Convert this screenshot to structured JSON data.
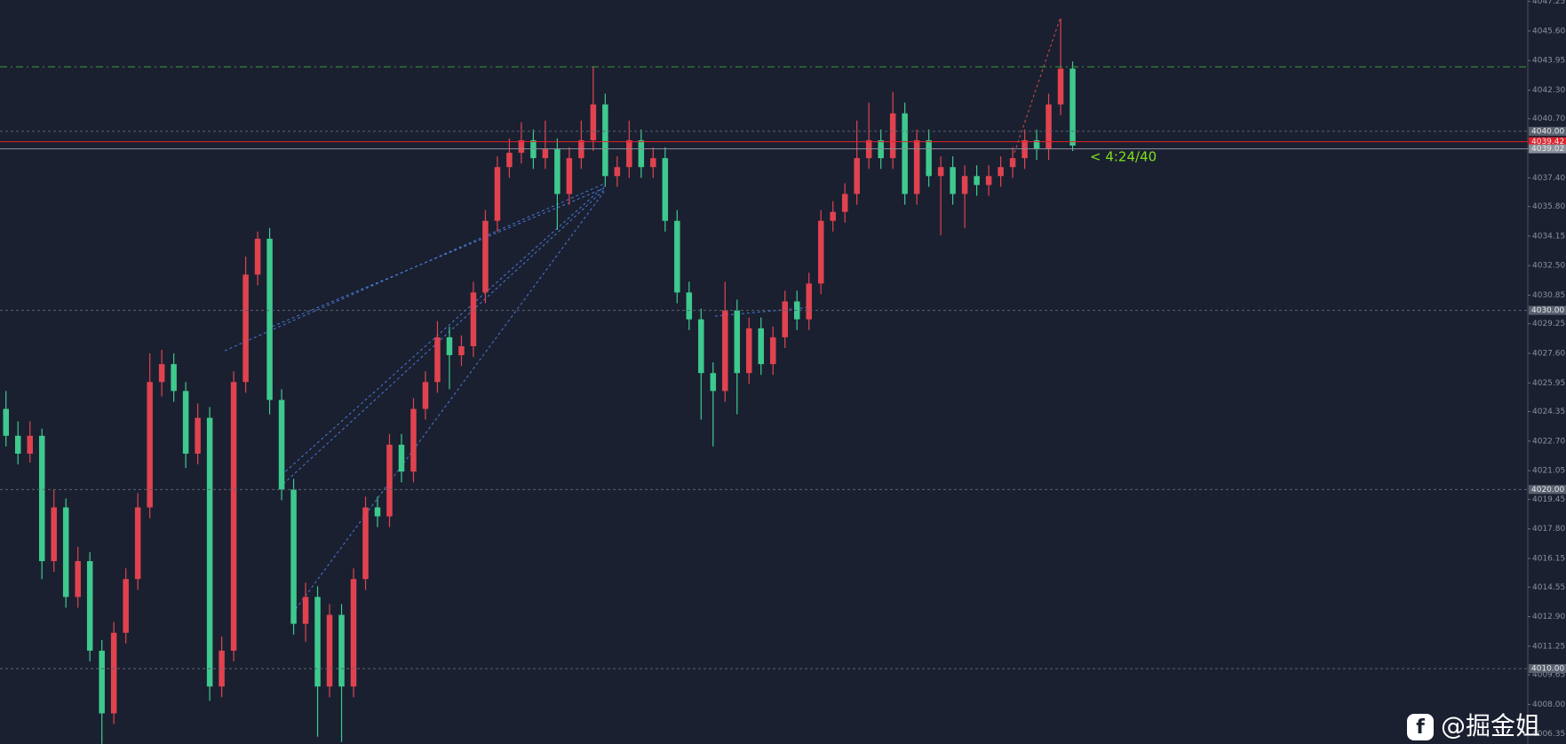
{
  "chart_data": {
    "type": "candlestick",
    "up_color": "#e0434f",
    "down_color": "#3ec98e",
    "background": "#1a2030",
    "ylim": [
      4005.79,
      4047.33
    ],
    "yticks": [
      {
        "value": 4047.25,
        "label": "4047.25"
      },
      {
        "value": 4045.6,
        "label": "4045.60"
      },
      {
        "value": 4043.95,
        "label": "4043.95"
      },
      {
        "value": 4042.3,
        "label": "4042.30"
      },
      {
        "value": 4040.7,
        "label": "4040.70"
      },
      {
        "value": 4039.05,
        "label": "4039.05"
      },
      {
        "value": 4037.4,
        "label": "4037.40"
      },
      {
        "value": 4035.8,
        "label": "4035.80"
      },
      {
        "value": 4034.15,
        "label": "4034.15"
      },
      {
        "value": 4032.5,
        "label": "4032.50"
      },
      {
        "value": 4030.85,
        "label": "4030.85"
      },
      {
        "value": 4029.25,
        "label": "4029.25"
      },
      {
        "value": 4027.6,
        "label": "4027.60"
      },
      {
        "value": 4025.95,
        "label": "4025.95"
      },
      {
        "value": 4024.35,
        "label": "4024.35"
      },
      {
        "value": 4022.7,
        "label": "4022.70"
      },
      {
        "value": 4021.05,
        "label": "4021.05"
      },
      {
        "value": 4019.45,
        "label": "4019.45"
      },
      {
        "value": 4017.8,
        "label": "4017.80"
      },
      {
        "value": 4016.15,
        "label": "4016.15"
      },
      {
        "value": 4014.55,
        "label": "4014.55"
      },
      {
        "value": 4012.9,
        "label": "4012.90"
      },
      {
        "value": 4011.25,
        "label": "4011.25"
      },
      {
        "value": 4009.65,
        "label": "4009.65"
      },
      {
        "value": 4008,
        "label": "4008.00"
      },
      {
        "value": 4006.35,
        "label": "4006.35"
      }
    ],
    "levels": [
      {
        "value": 4043.6,
        "color": "#3a9a3a",
        "dash": "8 4 2 4"
      },
      {
        "value": 4040,
        "label": "4040.00",
        "color": "#5a6270",
        "dash": "3 3"
      },
      {
        "value": 4039.42,
        "label": "4039.42",
        "color": "#e0202a",
        "dash": ""
      },
      {
        "value": 4039.02,
        "label": "4039.02",
        "color": "#8a909a",
        "dash": ""
      },
      {
        "value": 4030,
        "label": "4030.00",
        "color": "#5a6270",
        "dash": "3 3"
      },
      {
        "value": 4020,
        "label": "4020.00",
        "color": "#5a6270",
        "dash": "3 3"
      },
      {
        "value": 4010,
        "label": "4010.00",
        "color": "#5a6270",
        "dash": "3 3"
      }
    ],
    "candles": [
      [
        4024.5,
        4025.5,
        4022.4,
        4023
      ],
      [
        4023,
        4023.8,
        4021.4,
        4022
      ],
      [
        4022,
        4023.8,
        4021.5,
        4023
      ],
      [
        4023,
        4023.4,
        4015,
        4016
      ],
      [
        4016,
        4020,
        4015.4,
        4019
      ],
      [
        4019,
        4019.5,
        4013.4,
        4014
      ],
      [
        4014,
        4016.8,
        4013.4,
        4016
      ],
      [
        4016,
        4016.5,
        4010.4,
        4011
      ],
      [
        4011,
        4011.6,
        4005.8,
        4007.5
      ],
      [
        4007.5,
        4012.6,
        4006.9,
        4012
      ],
      [
        4012,
        4015.6,
        4011.4,
        4015
      ],
      [
        4015,
        4019.8,
        4014.4,
        4019
      ],
      [
        4019,
        4027.6,
        4018.4,
        4026
      ],
      [
        4026,
        4027.8,
        4025.2,
        4027
      ],
      [
        4027,
        4027.6,
        4024.9,
        4025.5
      ],
      [
        4025.5,
        4026,
        4021.2,
        4022
      ],
      [
        4022,
        4024.8,
        4021.4,
        4024
      ],
      [
        4024,
        4024.6,
        4008.2,
        4009
      ],
      [
        4009,
        4011.8,
        4008.4,
        4011
      ],
      [
        4011,
        4026.6,
        4010.4,
        4026
      ],
      [
        4026,
        4033,
        4025.4,
        4032
      ],
      [
        4032,
        4034.4,
        4031.4,
        4034
      ],
      [
        4034,
        4034.6,
        4024.2,
        4025
      ],
      [
        4025,
        4025.6,
        4019.4,
        4020
      ],
      [
        4020,
        4020.6,
        4011.9,
        4012.5
      ],
      [
        4012.5,
        4014.8,
        4011.5,
        4014
      ],
      [
        4014,
        4014.6,
        4006.2,
        4009
      ],
      [
        4009,
        4013.6,
        4008.4,
        4013
      ],
      [
        4013,
        4013.6,
        4005.9,
        4009
      ],
      [
        4009,
        4015.6,
        4008.4,
        4015
      ],
      [
        4015,
        4019.6,
        4014.4,
        4019
      ],
      [
        4019,
        4019.6,
        4017.9,
        4018.5
      ],
      [
        4018.5,
        4023.1,
        4017.9,
        4022.5
      ],
      [
        4022.5,
        4023.1,
        4020.4,
        4021
      ],
      [
        4021,
        4025.1,
        4020.4,
        4024.5
      ],
      [
        4024.5,
        4026.6,
        4023.9,
        4026
      ],
      [
        4026,
        4029.4,
        4025.4,
        4028.5
      ],
      [
        4028.5,
        4029.1,
        4025.6,
        4027.5
      ],
      [
        4027.5,
        4028.6,
        4026.9,
        4028
      ],
      [
        4028,
        4031.6,
        4027.4,
        4031
      ],
      [
        4031,
        4035.6,
        4030.4,
        4035
      ],
      [
        4035,
        4038.6,
        4034.4,
        4038
      ],
      [
        4038,
        4039.6,
        4037.4,
        4038.8
      ],
      [
        4038.8,
        4040.5,
        4038.2,
        4039.5
      ],
      [
        4039.5,
        4040.1,
        4037.9,
        4038.5
      ],
      [
        4038.5,
        4040.6,
        4037.9,
        4039
      ],
      [
        4039,
        4039.6,
        4034.5,
        4036.5
      ],
      [
        4036.5,
        4039.1,
        4035.9,
        4038.5
      ],
      [
        4038.5,
        4040.6,
        4037.9,
        4039.5
      ],
      [
        4039.5,
        4043.6,
        4038.9,
        4041.5
      ],
      [
        4041.5,
        4042.1,
        4036.9,
        4037.5
      ],
      [
        4037.5,
        4038.6,
        4036.9,
        4038
      ],
      [
        4038,
        4040.6,
        4037.4,
        4039.5
      ],
      [
        4039.5,
        4040.1,
        4037.4,
        4038
      ],
      [
        4038,
        4039.1,
        4037.4,
        4038.5
      ],
      [
        4038.5,
        4039.1,
        4034.4,
        4035
      ],
      [
        4035,
        4035.6,
        4030.4,
        4031
      ],
      [
        4031,
        4031.6,
        4028.9,
        4029.5
      ],
      [
        4029.5,
        4030.1,
        4023.9,
        4026.5
      ],
      [
        4026.5,
        4027.1,
        4022.4,
        4025.5
      ],
      [
        4025.5,
        4031.6,
        4024.9,
        4030
      ],
      [
        4030,
        4030.6,
        4024.2,
        4026.5
      ],
      [
        4026.5,
        4029.6,
        4025.9,
        4029
      ],
      [
        4029,
        4029.6,
        4026.4,
        4027
      ],
      [
        4027,
        4029.1,
        4026.4,
        4028.5
      ],
      [
        4028.5,
        4031.1,
        4027.9,
        4030.5
      ],
      [
        4030.5,
        4031.1,
        4028.9,
        4029.5
      ],
      [
        4029.5,
        4032.1,
        4028.9,
        4031.5
      ],
      [
        4031.5,
        4035.6,
        4030.9,
        4035
      ],
      [
        4035,
        4036.1,
        4034.4,
        4035.5
      ],
      [
        4035.5,
        4037.1,
        4034.9,
        4036.5
      ],
      [
        4036.5,
        4040.6,
        4035.9,
        4038.5
      ],
      [
        4038.5,
        4041.6,
        4037.9,
        4039.5
      ],
      [
        4039.5,
        4040.1,
        4037.9,
        4038.5
      ],
      [
        4038.5,
        4042.2,
        4037.9,
        4041
      ],
      [
        4041,
        4041.6,
        4035.9,
        4036.5
      ],
      [
        4036.5,
        4040.1,
        4035.9,
        4039.5
      ],
      [
        4039.5,
        4040.1,
        4036.9,
        4037.5
      ],
      [
        4037.5,
        4038.6,
        4034.2,
        4038
      ],
      [
        4038,
        4038.6,
        4035.9,
        4036.5
      ],
      [
        4036.5,
        4038.1,
        4034.6,
        4037.5
      ],
      [
        4037.5,
        4038.1,
        4036.4,
        4037
      ],
      [
        4037,
        4038.1,
        4036.4,
        4037.5
      ],
      [
        4037.5,
        4038.6,
        4036.9,
        4038
      ],
      [
        4038,
        4039.1,
        4037.4,
        4038.5
      ],
      [
        4038.5,
        4040.1,
        4037.9,
        4039.5
      ],
      [
        4039.5,
        4040.1,
        4038.4,
        4039
      ],
      [
        4039,
        4042.1,
        4038.4,
        4041.5
      ],
      [
        4041.5,
        4046.3,
        4040.9,
        4043.5
      ],
      [
        4043.5,
        4043.9,
        4038.9,
        4039.2
      ]
    ],
    "annotation": "< 4:24/40",
    "watermark": "@掘金姐"
  }
}
